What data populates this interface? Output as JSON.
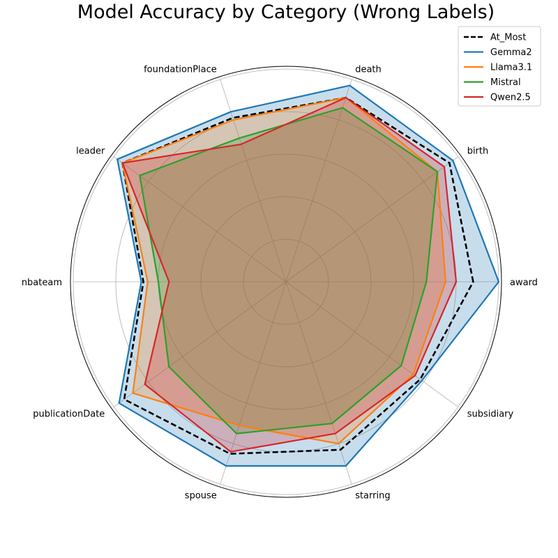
{
  "chart_data": {
    "type": "radar",
    "title": "Model Accuracy by Category (Wrong Labels)",
    "categories": [
      "award",
      "birth",
      "death",
      "foundationPlace",
      "leader",
      "nbateam",
      "publicationDate",
      "spouse",
      "starring",
      "subsidiary"
    ],
    "rlim": [
      0,
      1
    ],
    "grid": true,
    "legend_position": "top-right",
    "series": [
      {
        "name": "At_Most",
        "color": "#000000",
        "style": "dashed",
        "fill": false,
        "values": [
          0.88,
          0.95,
          0.91,
          0.81,
          0.95,
          0.67,
          0.94,
          0.85,
          0.83,
          0.78
        ]
      },
      {
        "name": "Gemma2",
        "color": "#1f77b4",
        "style": "solid",
        "fill": true,
        "values": [
          1.0,
          0.97,
          0.97,
          0.84,
          0.98,
          0.68,
          0.97,
          0.91,
          0.91,
          0.79
        ]
      },
      {
        "name": "Llama3.1",
        "color": "#ff7f0e",
        "style": "solid",
        "fill": true,
        "values": [
          0.75,
          0.88,
          0.91,
          0.8,
          0.95,
          0.65,
          0.89,
          0.71,
          0.8,
          0.74
        ]
      },
      {
        "name": "Mistral",
        "color": "#2ca02c",
        "style": "solid",
        "fill": true,
        "values": [
          0.66,
          0.88,
          0.86,
          0.71,
          0.85,
          0.6,
          0.68,
          0.75,
          0.7,
          0.67
        ]
      },
      {
        "name": "Qwen2.5",
        "color": "#d62728",
        "style": "solid",
        "fill": true,
        "values": [
          0.8,
          0.92,
          0.91,
          0.68,
          0.95,
          0.55,
          0.82,
          0.84,
          0.75,
          0.75
        ]
      }
    ]
  }
}
